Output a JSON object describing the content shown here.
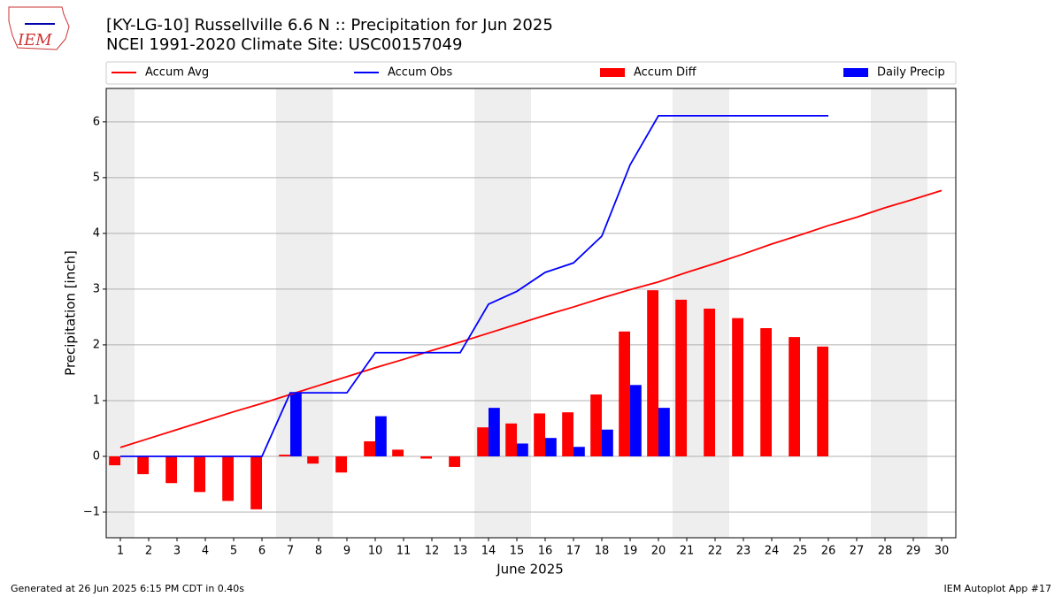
{
  "chart_data": {
    "type": "bar",
    "title": "[KY-LG-10] Russellville 6.6 N :: Precipitation for Jun 2025",
    "subtitle": "NCEI 1991-2020 Climate Site: USC00157049",
    "logo_text": "IEM",
    "x_label": "June 2025",
    "y_label": "Precipitation [inch]",
    "footer_left": "Generated at 26 Jun 2025 6:15 PM CDT in 0.40s",
    "footer_right": "IEM Autoplot App #17",
    "x": [
      1,
      2,
      3,
      4,
      5,
      6,
      7,
      8,
      9,
      10,
      11,
      12,
      13,
      14,
      15,
      16,
      17,
      18,
      19,
      20,
      21,
      22,
      23,
      24,
      25,
      26,
      27,
      28,
      29,
      30
    ],
    "xlim": [
      0.5,
      30.5
    ],
    "xticks": [
      1,
      2,
      3,
      4,
      5,
      6,
      7,
      8,
      9,
      10,
      11,
      12,
      13,
      14,
      15,
      16,
      17,
      18,
      19,
      20,
      21,
      22,
      23,
      24,
      25,
      26,
      27,
      28,
      29,
      30
    ],
    "ylim": [
      -1.46,
      6.6
    ],
    "yticks": [
      {
        "value": -1,
        "label": "−1"
      },
      0,
      1,
      2,
      3,
      4,
      5,
      6
    ],
    "grid": true,
    "shaded_spans": [
      [
        0.5,
        1.5
      ],
      [
        6.5,
        8.5
      ],
      [
        13.5,
        15.5
      ],
      [
        20.5,
        22.5
      ],
      [
        27.5,
        29.5
      ]
    ],
    "series": [
      {
        "name": "Accum Avg",
        "style": "line",
        "color": "#ff0000",
        "values": [
          0.16,
          0.32,
          0.48,
          0.64,
          0.8,
          0.95,
          1.11,
          1.27,
          1.43,
          1.59,
          1.74,
          1.9,
          2.05,
          2.21,
          2.37,
          2.53,
          2.68,
          2.84,
          2.99,
          3.13,
          3.3,
          3.46,
          3.63,
          3.81,
          3.97,
          4.14,
          4.29,
          4.46,
          4.61,
          4.77
        ]
      },
      {
        "name": "Accum Obs",
        "style": "line",
        "color": "#0000ff",
        "values": [
          0,
          0,
          0,
          0,
          0,
          0,
          1.14,
          1.14,
          1.14,
          1.86,
          1.86,
          1.86,
          1.86,
          2.73,
          2.96,
          3.3,
          3.47,
          3.95,
          5.23,
          6.11,
          6.11,
          6.11,
          6.11,
          6.11,
          6.11,
          6.11,
          null,
          null,
          null,
          null
        ]
      },
      {
        "name": "Accum Diff",
        "style": "bar",
        "color": "#ff0000",
        "values": [
          -0.16,
          -0.32,
          -0.48,
          -0.64,
          -0.8,
          -0.95,
          0.03,
          -0.13,
          -0.29,
          0.27,
          0.12,
          -0.04,
          -0.19,
          0.52,
          0.59,
          0.77,
          0.79,
          1.11,
          2.24,
          2.98,
          2.81,
          2.65,
          2.48,
          2.3,
          2.14,
          1.97,
          null,
          null,
          null,
          null
        ]
      },
      {
        "name": "Daily Precip",
        "style": "bar",
        "color": "#0000ff",
        "values": [
          0,
          0,
          0,
          0,
          0,
          0,
          1.14,
          0,
          0,
          0.72,
          0,
          0,
          0,
          0.87,
          0.23,
          0.33,
          0.17,
          0.48,
          1.28,
          0.87,
          0,
          0,
          0,
          0,
          0,
          0,
          null,
          null,
          null,
          null
        ]
      }
    ]
  }
}
